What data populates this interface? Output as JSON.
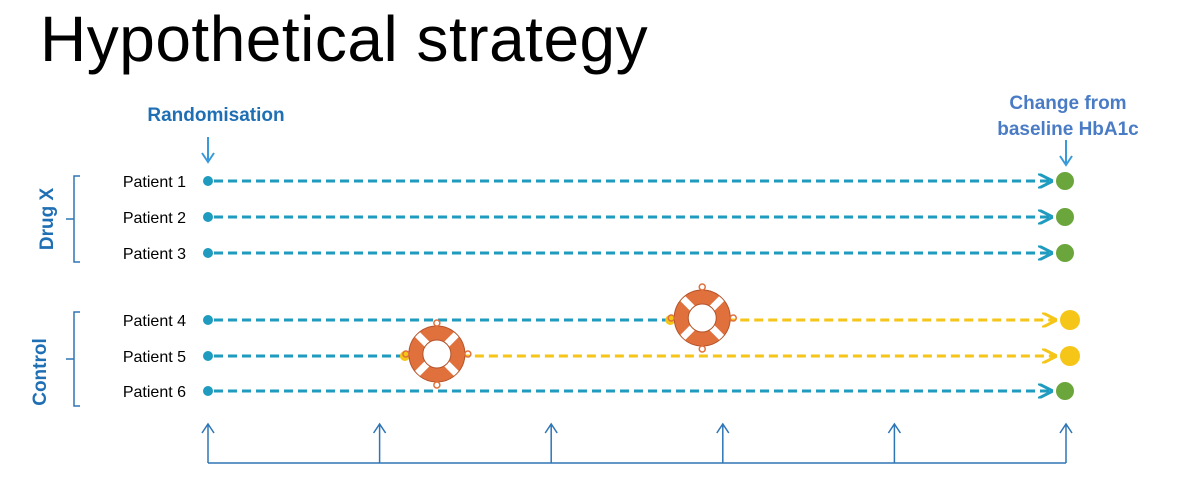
{
  "title": "Hypothetical strategy",
  "randomisation_label": "Randomisation",
  "endpoint_label_line1": "Change from",
  "endpoint_label_line2": "baseline HbA1c",
  "groups": [
    {
      "label": "Drug X"
    },
    {
      "label": "Control"
    }
  ],
  "patients": [
    {
      "label": "Patient 1",
      "group": "Drug X",
      "switch_fraction": null,
      "endpoint_color": "green"
    },
    {
      "label": "Patient 2",
      "group": "Drug X",
      "switch_fraction": null,
      "endpoint_color": "green"
    },
    {
      "label": "Patient 3",
      "group": "Drug X",
      "switch_fraction": null,
      "endpoint_color": "green"
    },
    {
      "label": "Patient 4",
      "group": "Control",
      "switch_fraction": 0.54,
      "endpoint_color": "yellow"
    },
    {
      "label": "Patient 5",
      "group": "Control",
      "switch_fraction": 0.23,
      "endpoint_color": "yellow"
    },
    {
      "label": "Patient 6",
      "group": "Control",
      "switch_fraction": null,
      "endpoint_color": "green"
    }
  ],
  "rescue_icon": "lifebuoy-icon",
  "visit_markers": 6,
  "colors": {
    "title_blue": "#1F6FB4",
    "endpoint_blue": "#4A7CC6",
    "arrow_light_blue": "#3A9AD9",
    "teal_line": "#1E9BBE",
    "yellow_line": "#F5C518",
    "green_dot": "#6BA63C",
    "axis_blue": "#2E75B6",
    "lifebuoy_orange": "#E0703C"
  }
}
